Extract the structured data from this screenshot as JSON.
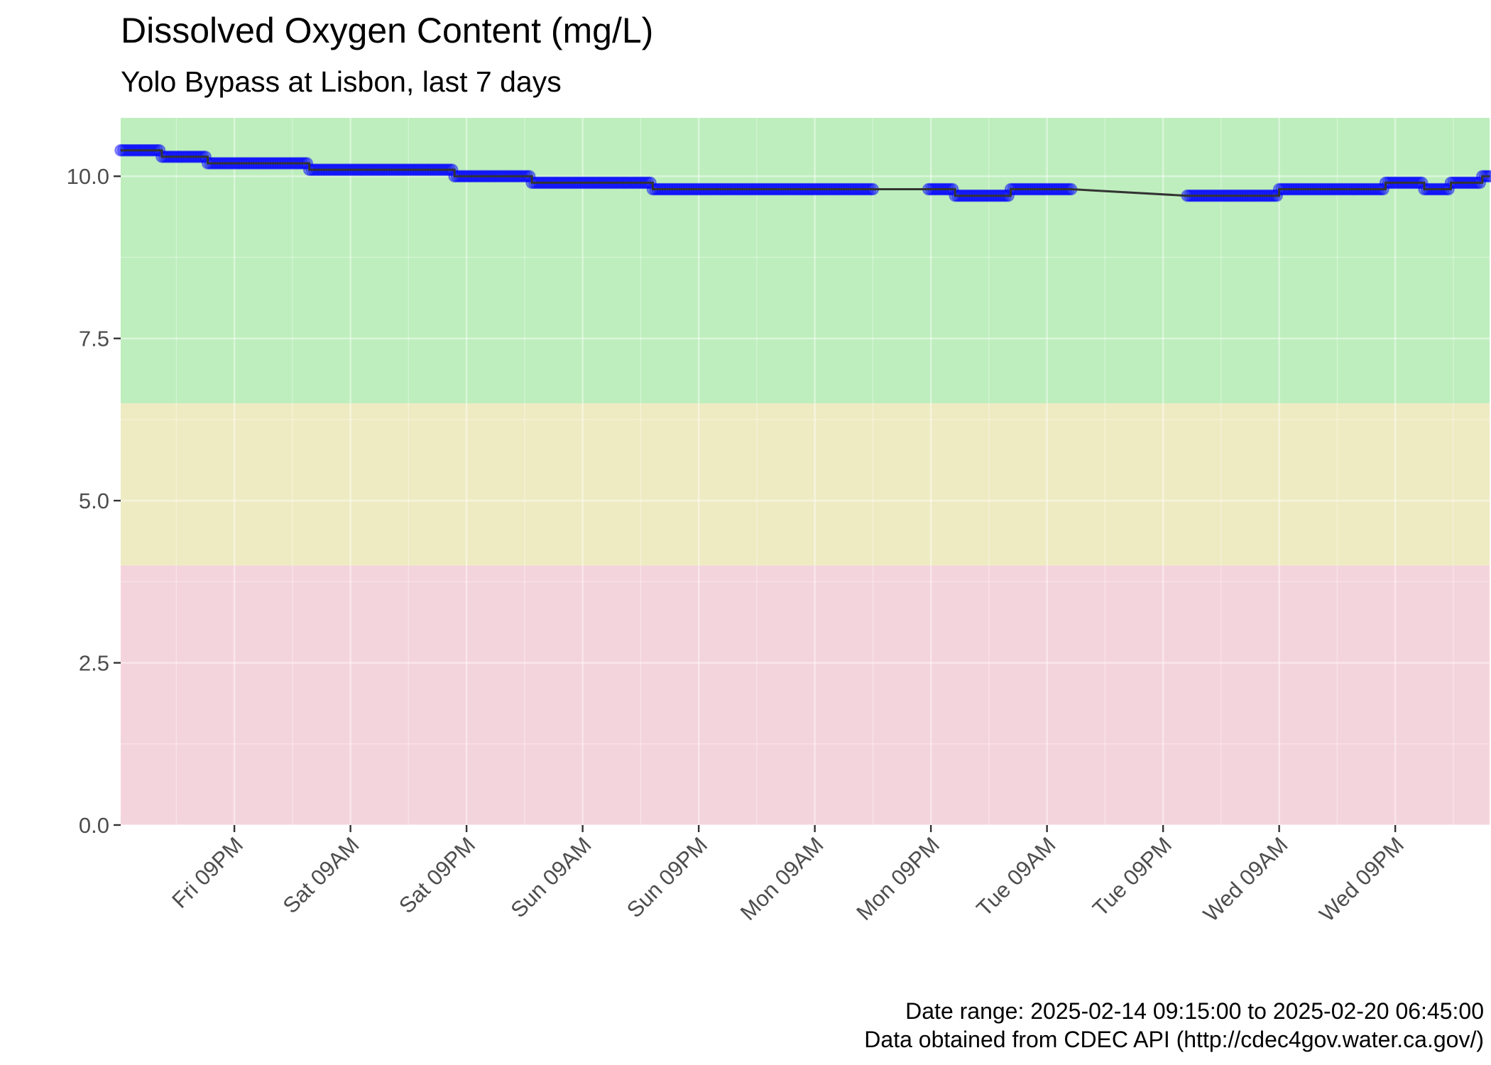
{
  "chart_data": {
    "type": "line",
    "title": "Dissolved Oxygen Content (mg/L)",
    "subtitle": "Yolo Bypass at Lisbon, last 7 days",
    "caption": [
      "Date range: 2025-02-14 09:15:00 to 2025-02-20 06:45:00",
      "Data obtained from CDEC API (http://cdec4gov.water.ca.gov/)"
    ],
    "xlabel": "",
    "ylabel": "",
    "xlim": [
      "2025-02-14 09:15",
      "2025-02-20 06:45"
    ],
    "ylim": [
      0,
      10.9
    ],
    "y_ticks": [
      0,
      2.5,
      5,
      7.5,
      10
    ],
    "y_tick_labels": [
      "0.0",
      "2.5",
      "5.0",
      "7.5",
      "10.0"
    ],
    "x_ticks": [
      "2025-02-14 21:00",
      "2025-02-15 09:00",
      "2025-02-15 21:00",
      "2025-02-16 09:00",
      "2025-02-16 21:00",
      "2025-02-17 09:00",
      "2025-02-17 21:00",
      "2025-02-18 09:00",
      "2025-02-18 21:00",
      "2025-02-19 09:00",
      "2025-02-19 21:00"
    ],
    "x_tick_labels": [
      "Fri 09PM",
      "Sat 09AM",
      "Sat 09PM",
      "Sun 09AM",
      "Sun 09PM",
      "Mon 09AM",
      "Mon 09PM",
      "Tue 09AM",
      "Tue 09PM",
      "Wed 09AM",
      "Wed 09PM"
    ],
    "bands": [
      {
        "ymin": 0,
        "ymax": 4,
        "color": "#f4d4dc"
      },
      {
        "ymin": 4,
        "ymax": 6.5,
        "color": "#eeebc3"
      },
      {
        "ymin": 6.5,
        "ymax": 10.9,
        "color": "#beeebd"
      }
    ],
    "colors": {
      "point": "#0000ff",
      "line": "#333333",
      "grid": "#ffffff"
    },
    "grid": true,
    "legend": "none",
    "series": [
      {
        "segments": [
          {
            "x": "2025-02-14 09:15",
            "y": 10.4
          },
          {
            "x": "2025-02-14 13:30",
            "y": 10.3
          },
          {
            "x": "2025-02-14 18:15",
            "y": 10.2
          },
          {
            "x": "2025-02-15 04:45",
            "y": 10.1
          },
          {
            "x": "2025-02-15 19:45",
            "y": 10.0
          },
          {
            "x": "2025-02-16 03:45",
            "y": 9.9
          },
          {
            "x": "2025-02-16 16:15",
            "y": 9.8
          },
          {
            "x": "2025-02-17 15:00",
            "y": 9.8
          },
          {
            "x": "2025-02-17 20:45",
            "y": 9.8
          },
          {
            "x": "2025-02-17 23:30",
            "y": 9.7
          },
          {
            "x": "2025-02-18 05:15",
            "y": 9.8
          },
          {
            "x": "2025-02-18 11:30",
            "y": 9.8
          },
          {
            "x": "2025-02-18 23:30",
            "y": 9.7
          },
          {
            "x": "2025-02-19 09:00",
            "y": 9.8
          },
          {
            "x": "2025-02-19 20:00",
            "y": 9.9
          },
          {
            "x": "2025-02-20 00:00",
            "y": 9.8
          },
          {
            "x": "2025-02-20 02:45",
            "y": 9.9
          },
          {
            "x": "2025-02-20 06:00",
            "y": 10.0
          },
          {
            "x": "2025-02-20 06:45",
            "y": 10.0
          }
        ]
      }
    ],
    "gaps": [
      [
        "2025-02-17 15:00",
        "2025-02-17 20:45"
      ],
      [
        "2025-02-18 11:30",
        "2025-02-18 23:30"
      ]
    ]
  }
}
